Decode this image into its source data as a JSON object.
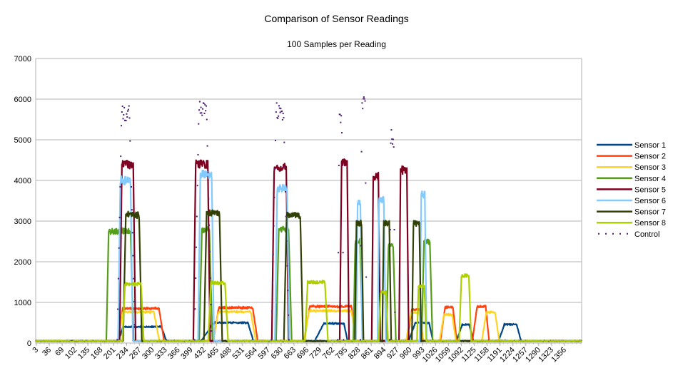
{
  "chart_data": {
    "type": "line",
    "title": "Comparison of Sensor Readings",
    "subtitle": "100 Samples per Reading",
    "xlabel": "",
    "ylabel": "",
    "x_range": [
      1,
      1400
    ],
    "ylim": [
      0,
      7000
    ],
    "y_ticks": [
      0,
      1000,
      2000,
      3000,
      4000,
      5000,
      6000,
      7000
    ],
    "x_ticks": [
      3,
      36,
      69,
      102,
      135,
      168,
      201,
      234,
      267,
      300,
      333,
      366,
      399,
      432,
      465,
      498,
      531,
      564,
      597,
      630,
      663,
      696,
      729,
      762,
      795,
      828,
      861,
      894,
      927,
      960,
      993,
      1026,
      1059,
      1092,
      1125,
      1158,
      1191,
      1224,
      1257,
      1290,
      1323,
      1356
    ],
    "x_tick_labels": [
      "3",
      "36",
      "69",
      "102",
      "135",
      "168",
      "201",
      "234",
      "267",
      "300",
      "333",
      "366",
      "399",
      "432",
      "465",
      "498",
      "531",
      "564",
      "597",
      "630",
      "663",
      "696",
      "729",
      "762",
      "795",
      "828",
      "861",
      "894",
      "927",
      "960",
      "993",
      "1026",
      "1059",
      "1092",
      "1125",
      "1158",
      "1191",
      "1224",
      "1257",
      "1290",
      "1323",
      "1356"
    ],
    "grid": "horizontal",
    "legend": "right",
    "baseline": 50,
    "series": [
      {
        "name": "Sensor 1",
        "color": "#004586",
        "style": "solid",
        "pulses": [
          [
            213,
            225,
            323,
            336,
            400
          ],
          [
            425,
            457,
            545,
            559,
            500
          ],
          [
            716,
            739,
            791,
            800,
            480
          ],
          [
            957,
            974,
            1009,
            1019,
            500
          ],
          [
            1079,
            1094,
            1112,
            1123,
            450
          ],
          [
            1187,
            1202,
            1233,
            1245,
            460
          ]
        ]
      },
      {
        "name": "Sensor 2",
        "color": "#ff420e",
        "style": "solid",
        "pulses": [
          [
            213,
            224,
            317,
            330,
            850
          ],
          [
            456,
            470,
            557,
            570,
            870
          ],
          [
            689,
            703,
            810,
            823,
            900
          ],
          [
            952,
            965,
            984,
            994,
            820
          ],
          [
            1038,
            1050,
            1070,
            1080,
            880
          ],
          [
            1120,
            1132,
            1154,
            1163,
            900
          ]
        ]
      },
      {
        "name": "Sensor 3",
        "color": "#ffd320",
        "style": "solid",
        "pulses": [
          [
            213,
            224,
            304,
            318,
            760
          ],
          [
            455,
            469,
            552,
            565,
            770
          ],
          [
            688,
            702,
            810,
            823,
            790
          ],
          [
            950,
            963,
            984,
            994,
            750
          ],
          [
            1036,
            1047,
            1068,
            1078,
            700
          ],
          [
            1144,
            1156,
            1178,
            1189,
            760
          ]
        ]
      },
      {
        "name": "Sensor 4",
        "color": "#579d1c",
        "style": "solid",
        "pulses": [
          [
            182,
            188,
            244,
            252,
            2750
          ],
          [
            420,
            427,
            446,
            454,
            2780
          ],
          [
            617,
            624,
            649,
            657,
            2800
          ],
          [
            815,
            820,
            832,
            839,
            2500
          ],
          [
            900,
            905,
            917,
            924,
            2400
          ],
          [
            990,
            996,
            1011,
            1018,
            2500
          ]
        ]
      },
      {
        "name": "Sensor 5",
        "color": "#7e0021",
        "style": "solid",
        "pulses": [
          [
            216,
            222,
            251,
            257,
            4400
          ],
          [
            405,
            411,
            442,
            448,
            4400
          ],
          [
            606,
            612,
            643,
            649,
            4300
          ],
          [
            780,
            785,
            799,
            804,
            4450
          ],
          [
            862,
            866,
            879,
            884,
            4100
          ],
          [
            932,
            936,
            952,
            957,
            4250
          ]
        ]
      },
      {
        "name": "Sensor 6",
        "color": "#83caff",
        "style": "solid",
        "pulses": [
          [
            212,
            218,
            244,
            250,
            4000
          ],
          [
            417,
            423,
            452,
            458,
            4150
          ],
          [
            614,
            620,
            645,
            651,
            3800
          ],
          [
            822,
            826,
            833,
            838,
            3450
          ],
          [
            877,
            881,
            893,
            898,
            3500
          ],
          [
            985,
            989,
            998,
            1003,
            3650
          ]
        ]
      },
      {
        "name": "Sensor 7",
        "color": "#314004",
        "style": "solid",
        "pulses": [
          [
            225,
            232,
            266,
            273,
            3150
          ],
          [
            432,
            439,
            472,
            479,
            3200
          ],
          [
            637,
            644,
            679,
            686,
            3150
          ],
          [
            819,
            823,
            836,
            841,
            2950
          ],
          [
            889,
            893,
            907,
            912,
            2950
          ],
          [
            965,
            969,
            984,
            989,
            2950
          ]
        ]
      },
      {
        "name": "Sensor 8",
        "color": "#aecf00",
        "style": "solid",
        "pulses": [
          [
            223,
            230,
            271,
            278,
            1450
          ],
          [
            443,
            450,
            486,
            494,
            1480
          ],
          [
            691,
            698,
            742,
            750,
            1500
          ],
          [
            880,
            885,
            899,
            904,
            1250
          ],
          [
            978,
            982,
            997,
            1002,
            1400
          ],
          [
            1086,
            1092,
            1111,
            1117,
            1650
          ]
        ]
      },
      {
        "name": "Control",
        "color": "#4b1f6f",
        "style": "dotted",
        "pulses": [
          [
            210,
            222,
            240,
            256,
            6100
          ],
          [
            408,
            420,
            438,
            452,
            6150
          ],
          [
            605,
            618,
            635,
            650,
            6150
          ],
          [
            775,
            779,
            786,
            790,
            5800
          ],
          [
            833,
            837,
            845,
            849,
            6250
          ],
          [
            908,
            911,
            918,
            922,
            5500
          ]
        ]
      }
    ]
  }
}
